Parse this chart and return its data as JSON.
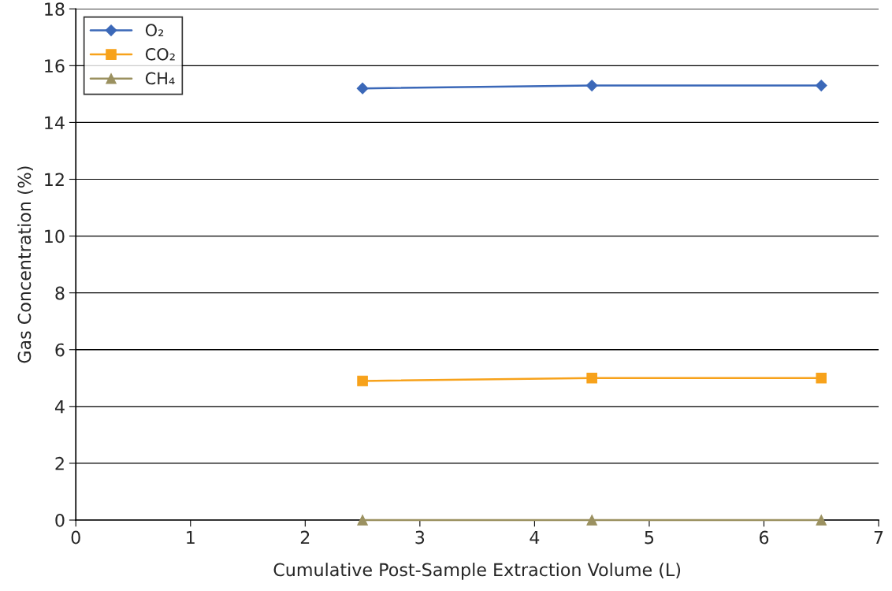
{
  "chart_data": {
    "type": "line",
    "xlabel": "Cumulative Post-Sample Extraction Volume (L)",
    "ylabel": "Gas Concentration (%)",
    "x": [
      2.5,
      4.5,
      6.5
    ],
    "series": [
      {
        "name": "O₂",
        "color": "#3b68b8",
        "marker": "diamond",
        "values": [
          15.2,
          15.3,
          15.3
        ]
      },
      {
        "name": "CO₂",
        "color": "#f7a21b",
        "marker": "square",
        "values": [
          4.9,
          5.0,
          5.0
        ]
      },
      {
        "name": "CH₄",
        "color": "#9b9160",
        "marker": "triangle",
        "values": [
          0,
          0,
          0
        ]
      }
    ],
    "xlim": [
      0,
      7
    ],
    "xticks": [
      0,
      1,
      2,
      3,
      4,
      5,
      6,
      7
    ],
    "ylim": [
      0,
      18
    ],
    "yticks": [
      0,
      2,
      4,
      6,
      8,
      10,
      12,
      14,
      16,
      18
    ],
    "grid": "y",
    "legend": "top left",
    "line_style": "solid"
  }
}
